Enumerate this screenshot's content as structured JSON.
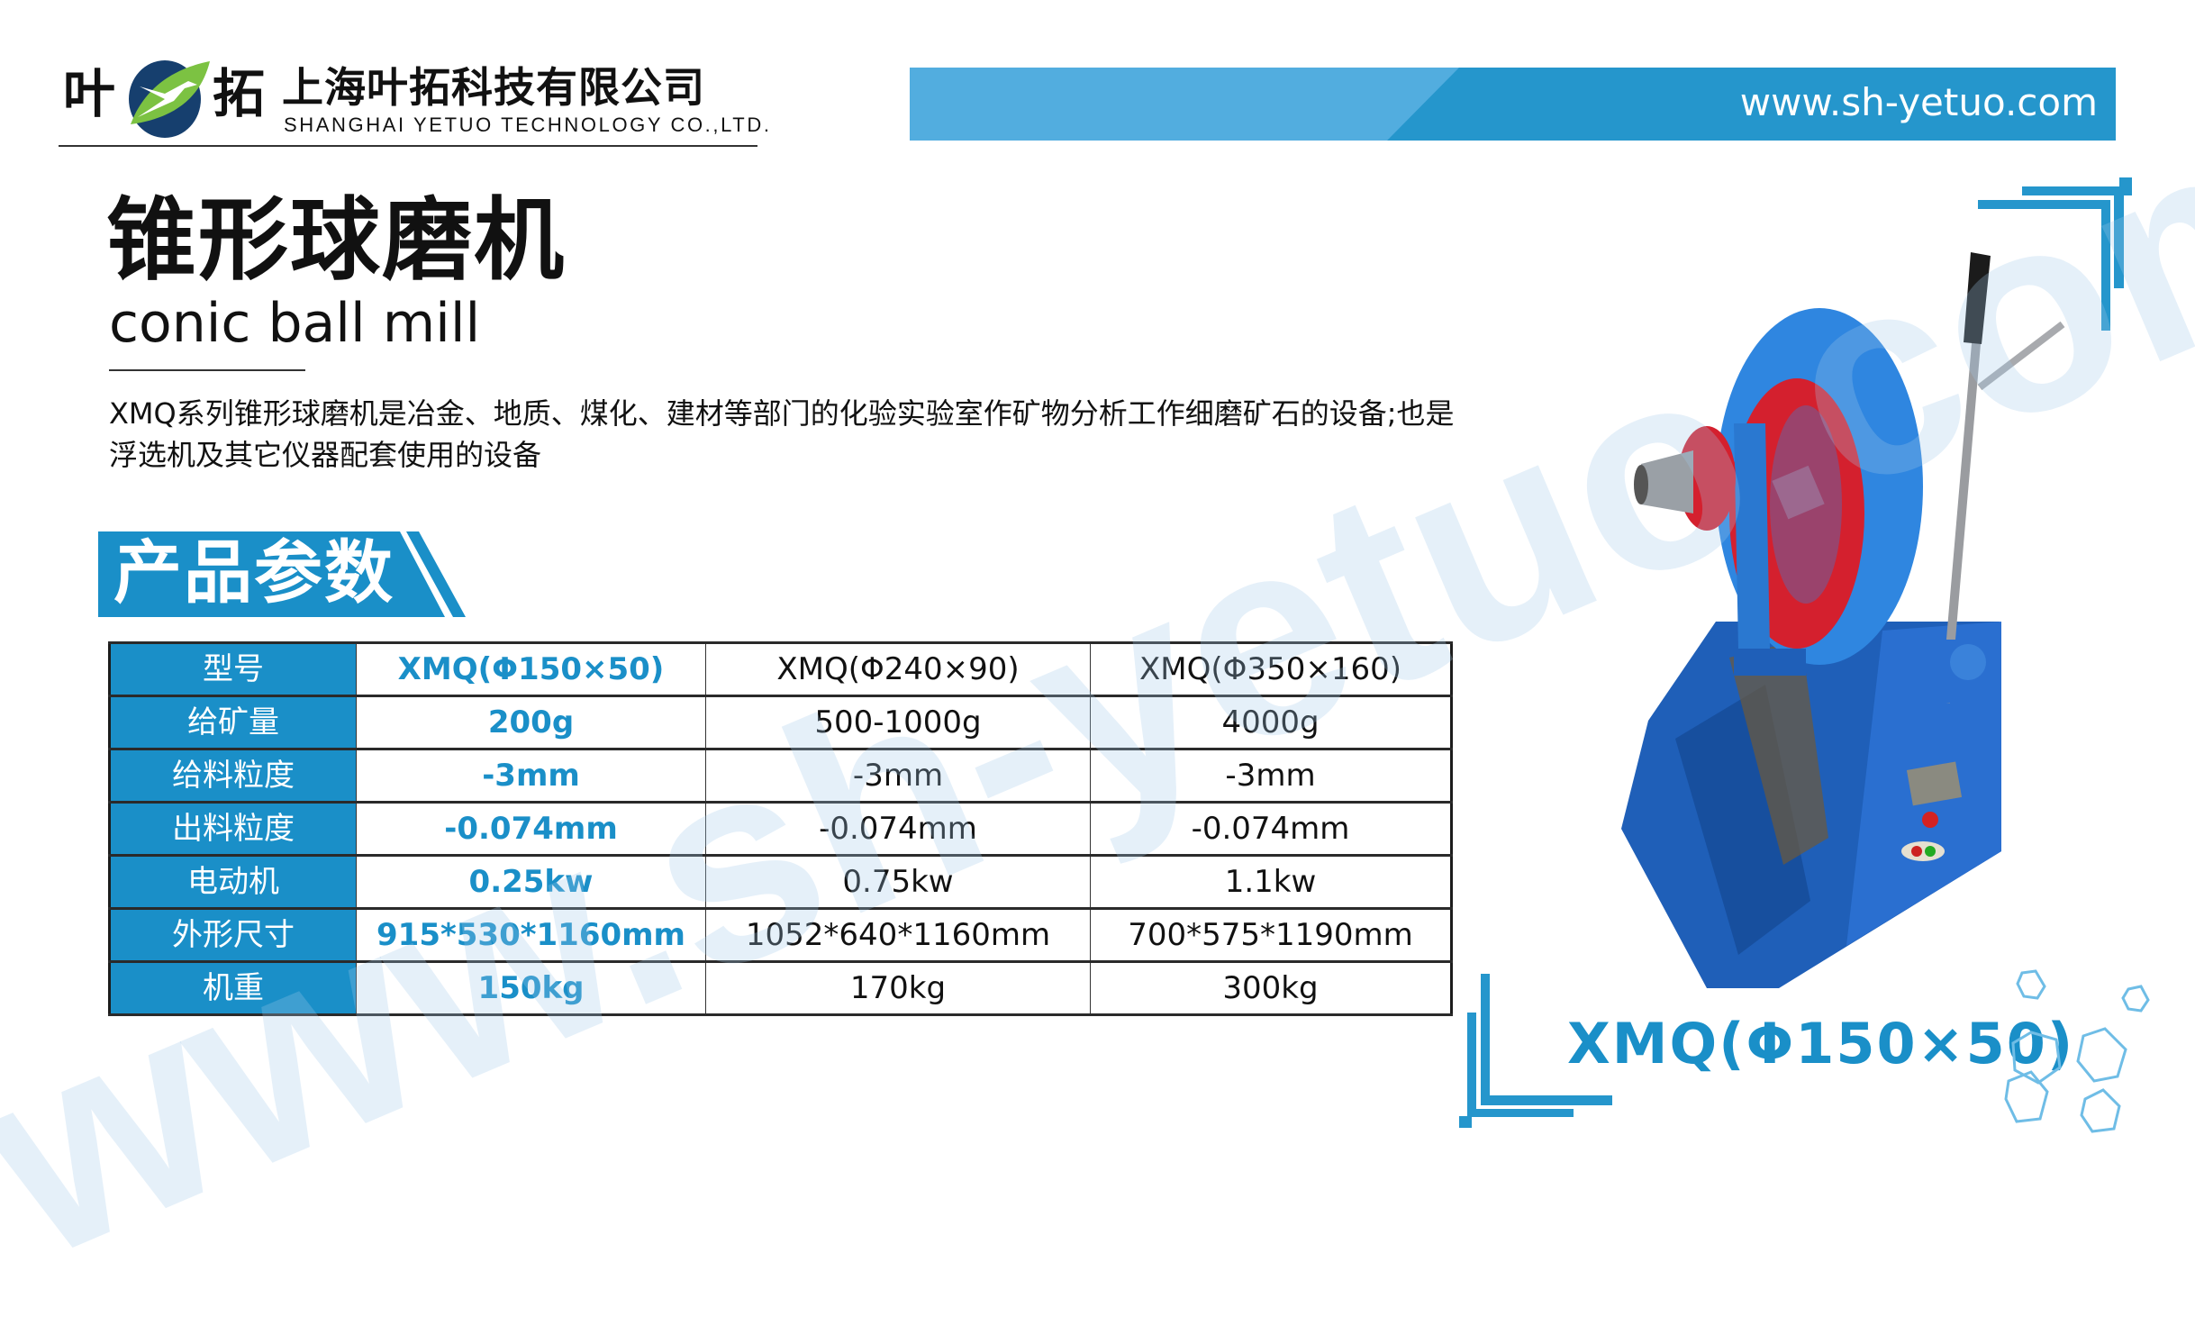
{
  "header": {
    "logo_chars": [
      "叶",
      "拓"
    ],
    "company_name_cn": "上海叶拓科技有限公司",
    "company_name_en": "SHANGHAI  YETUO  TECHNOLOGY  CO.,LTD.",
    "website": "www.sh-yetuo.com"
  },
  "product": {
    "title_cn": "锥形球磨机",
    "title_en": "conic ball mill",
    "description": "XMQ系列锥形球磨机是冶金、地质、煤化、建材等部门的化验实验室作矿物分析工作细磨矿石的设备;也是浮选机及其它仪器配套使用的设备",
    "params_heading": "产品参数",
    "featured_model": "XMQ(Φ150×50)"
  },
  "spec_table": {
    "rows": [
      {
        "label": "型号",
        "values": [
          "XMQ(Φ150×50)",
          "XMQ(Φ240×90)",
          "XMQ(Φ350×160)"
        ]
      },
      {
        "label": "给矿量",
        "values": [
          "200g",
          "500-1000g",
          "4000g"
        ]
      },
      {
        "label": "给料粒度",
        "values": [
          "-3mm",
          "-3mm",
          "-3mm"
        ]
      },
      {
        "label": "出料粒度",
        "values": [
          "-0.074mm",
          "-0.074mm",
          "-0.074mm"
        ]
      },
      {
        "label": "电动机",
        "values": [
          "0.25kw",
          "0.75kw",
          "1.1kw"
        ]
      },
      {
        "label": "外形尺寸",
        "values": [
          "915*530*1160mm",
          "1052*640*1160mm",
          "700*575*1190mm"
        ]
      },
      {
        "label": "机重",
        "values": [
          "150kg",
          "170kg",
          "300kg"
        ]
      }
    ]
  },
  "watermark": "www.sh-yetuo.com",
  "colors": {
    "accent": "#1a8fc8",
    "banner": "#2596cc",
    "banner_light": "#52addf",
    "logo_green": "#7cc242",
    "logo_navy": "#163f6e"
  },
  "icons": [
    "logo-leaf-bird-icon",
    "corner-bracket-icon",
    "hexagon-decoration-icon",
    "machine-photo"
  ]
}
